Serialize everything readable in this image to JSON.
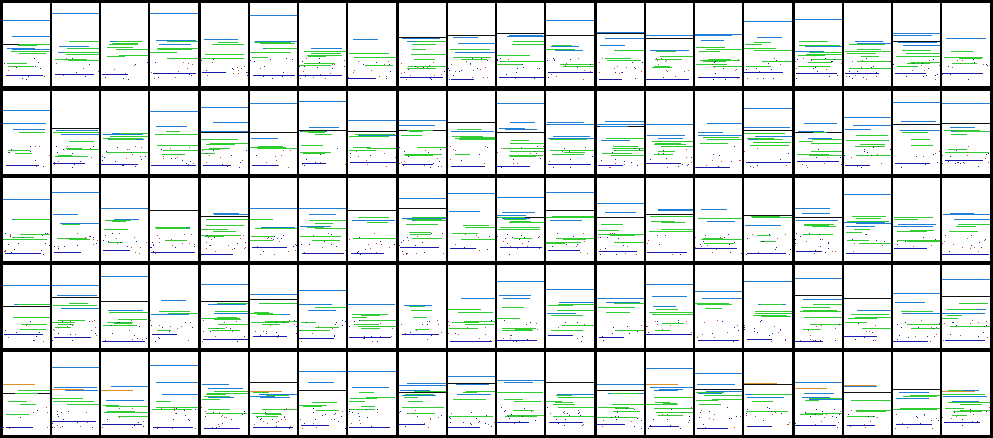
{
  "grid": {
    "block_rows": 5,
    "block_cols": 5,
    "panels_per_block": 4,
    "background": "#000000",
    "panel_background": "#ffffff"
  },
  "colors": {
    "blue": "#1f7fd6",
    "green": "#2ecc2e",
    "navy": "#1a1aa8",
    "black": "#111111",
    "orange": "#e0902a",
    "red_dot": "#cc4444"
  },
  "icons": []
}
